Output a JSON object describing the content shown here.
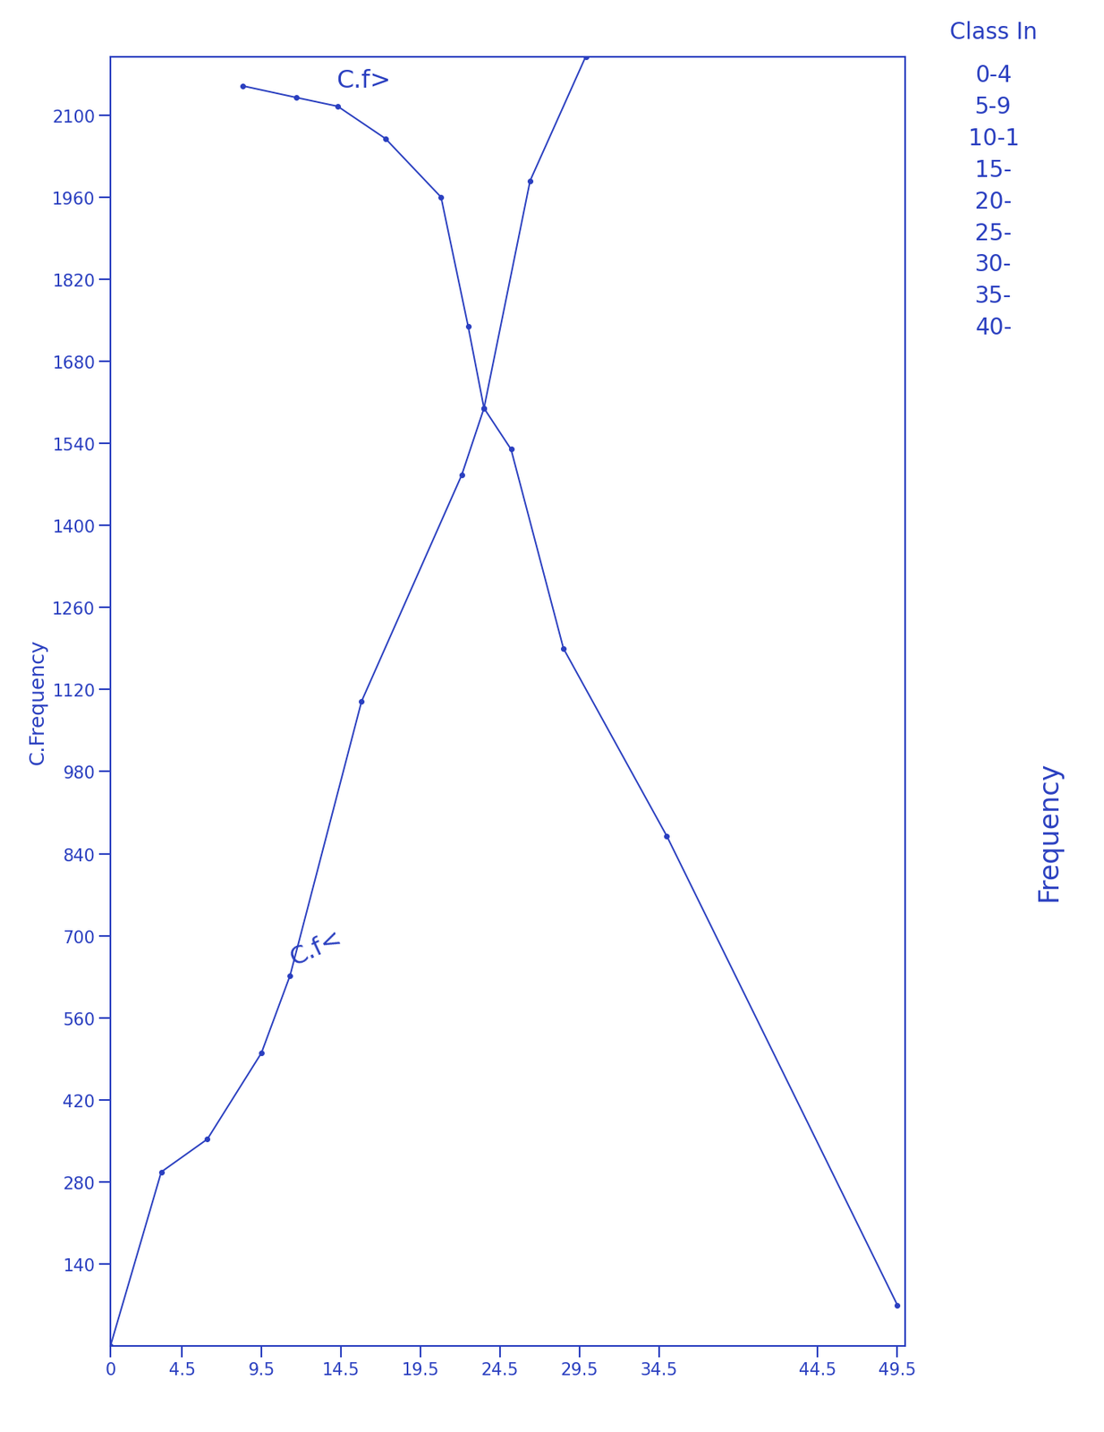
{
  "chart_data": {
    "type": "line",
    "y_label": "C.Frequency",
    "xlim": [
      0,
      50
    ],
    "ylim": [
      0,
      2200
    ],
    "xticks": [
      0,
      4.5,
      9.5,
      14.5,
      19.5,
      24.5,
      29.5,
      34.5,
      44.5,
      49.5
    ],
    "yticks": [
      140,
      280,
      420,
      560,
      700,
      840,
      980,
      1120,
      1260,
      1400,
      1540,
      1680,
      1820,
      1960,
      2100
    ],
    "grid": false,
    "color": "#2a3fc0",
    "series": [
      {
        "name": "C.f<",
        "color": "#2a3fc0",
        "marker": "o",
        "line_style": "solid",
        "x": [
          0,
          3.2,
          6.1,
          9.5,
          11.3,
          15.8,
          22.1,
          23.5,
          26.4,
          29.9
        ],
        "values": [
          0,
          297,
          353,
          500,
          632,
          1100,
          1486,
          1600,
          1988,
          2200
        ]
      },
      {
        "name": "C.f>",
        "color": "#2a3fc0",
        "marker": "o",
        "line_style": "solid",
        "x": [
          8.3,
          11.7,
          14.3,
          17.3,
          20.8,
          22.5,
          23.5,
          25.2,
          28.5,
          35.0,
          49.5
        ],
        "values": [
          2150,
          2130,
          2115,
          2060,
          1960,
          1740,
          1600,
          1530,
          1190,
          870,
          70
        ]
      }
    ],
    "side_texts": {
      "heading": "Class In",
      "rows": [
        "0-4",
        "5-9",
        "10-1",
        "15-",
        "20-",
        "25-",
        "30-",
        "35-",
        "40-"
      ],
      "label": "Frequency"
    }
  }
}
